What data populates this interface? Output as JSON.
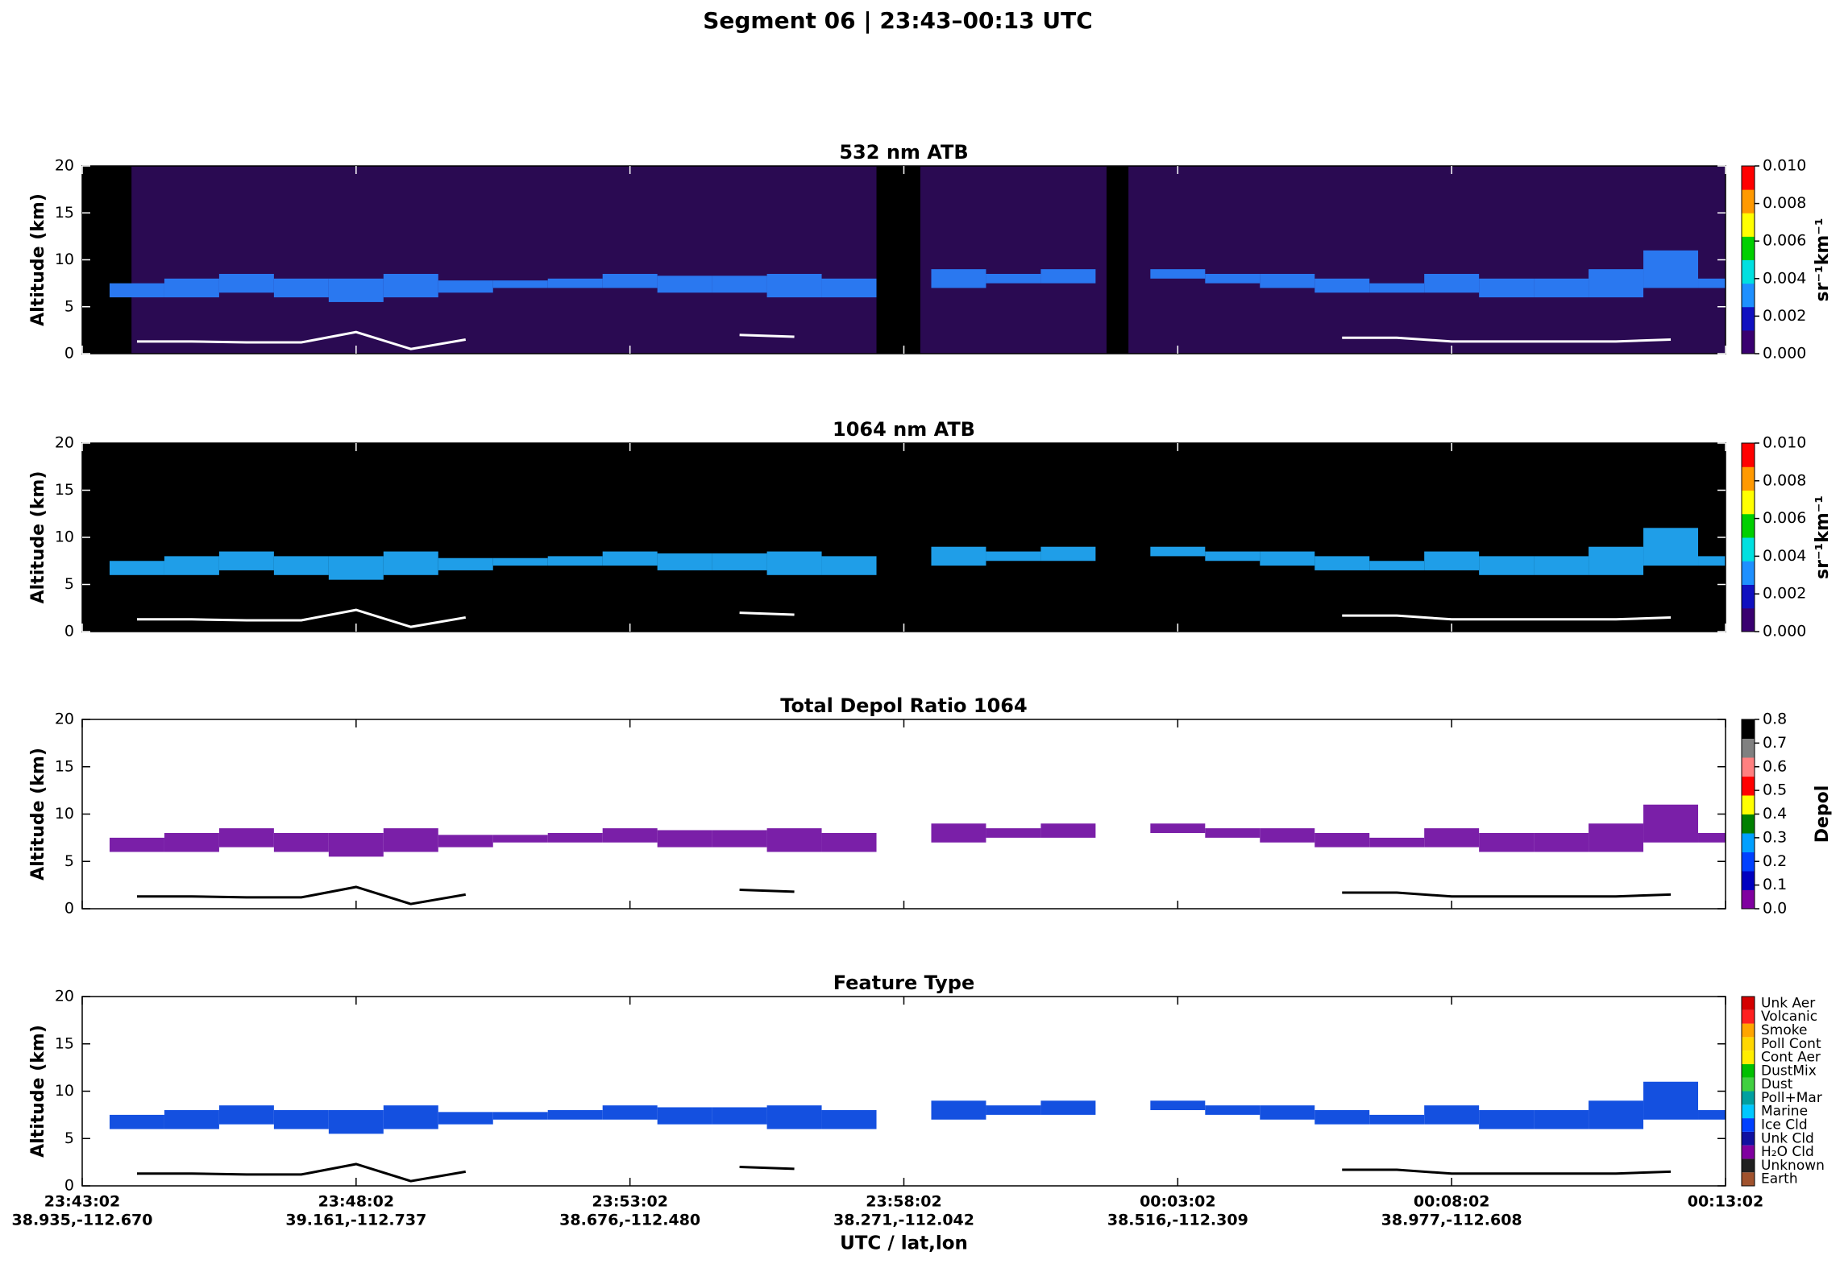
{
  "title": "Segment 06  |  23:43–00:13 UTC",
  "chart_data": [
    {
      "type": "curtain",
      "title": "532 nm ATB",
      "ylabel": "Altitude (km)",
      "ylim": [
        0,
        20
      ],
      "yticks": [
        0,
        5,
        10,
        15,
        20
      ],
      "xlim": [
        0,
        30
      ],
      "background": "#2a0a52",
      "color": "#2a78f0",
      "surface_color": "#ffffff",
      "no_data": [
        [
          0,
          0.9
        ],
        [
          14.5,
          15.3
        ],
        [
          18.7,
          19.1
        ]
      ],
      "x": [
        0,
        1,
        2,
        3,
        4,
        5,
        6,
        7,
        8,
        9,
        10,
        11,
        12,
        13,
        14,
        15,
        16,
        17,
        18,
        19,
        20,
        21,
        22,
        23,
        24,
        25,
        26,
        27,
        28,
        29,
        30
      ],
      "values": [
        null,
        7.5,
        8,
        8.5,
        8,
        8,
        8.5,
        7.8,
        7.8,
        8,
        8.5,
        8.3,
        8.3,
        8.5,
        8,
        null,
        9,
        8.5,
        9,
        null,
        9,
        8.5,
        8.5,
        8,
        7.5,
        8.5,
        8,
        8,
        9,
        11,
        8
      ],
      "base": [
        null,
        6,
        6,
        6.5,
        6,
        5.5,
        6,
        6.5,
        7,
        7,
        7,
        6.5,
        6.5,
        6,
        6,
        null,
        7,
        7.5,
        7.5,
        null,
        8,
        7.5,
        7,
        6.5,
        6.5,
        6.5,
        6,
        6,
        6,
        7,
        7
      ],
      "surface": [
        null,
        1.3,
        1.3,
        1.2,
        1.2,
        2.3,
        0.5,
        1.5,
        null,
        null,
        null,
        null,
        2,
        1.8,
        null,
        null,
        null,
        null,
        null,
        null,
        null,
        null,
        null,
        1.7,
        1.7,
        1.3,
        1.3,
        1.3,
        1.3,
        1.5,
        null
      ],
      "colorbar": {
        "label": "sr⁻¹km⁻¹",
        "lim": [
          0,
          0.01
        ],
        "colors": [
          "#3a0070",
          "#1010c0",
          "#1e90ff",
          "#00e0e0",
          "#00d000",
          "#ffff00",
          "#ff9900",
          "#ff0000"
        ],
        "ticks": [
          {
            "value": 0,
            "label": "0.000"
          },
          {
            "value": 0.002,
            "label": "0.002"
          },
          {
            "value": 0.004,
            "label": "0.004"
          },
          {
            "value": 0.006,
            "label": "0.006"
          },
          {
            "value": 0.008,
            "label": "0.008"
          },
          {
            "value": 0.01,
            "label": "0.010"
          }
        ]
      }
    },
    {
      "type": "curtain",
      "title": "1064 nm ATB",
      "ylabel": "Altitude (km)",
      "ylim": [
        0,
        20
      ],
      "yticks": [
        0,
        5,
        10,
        15,
        20
      ],
      "xlim": [
        0,
        30
      ],
      "background": "#000000",
      "color": "#1f9ee8",
      "surface_color": "#ffffff",
      "no_data": [
        [
          0,
          0.9
        ],
        [
          14.5,
          15.3
        ],
        [
          18.7,
          19.1
        ]
      ],
      "x": [
        0,
        1,
        2,
        3,
        4,
        5,
        6,
        7,
        8,
        9,
        10,
        11,
        12,
        13,
        14,
        15,
        16,
        17,
        18,
        19,
        20,
        21,
        22,
        23,
        24,
        25,
        26,
        27,
        28,
        29,
        30
      ],
      "values": [
        null,
        7.5,
        8,
        8.5,
        8,
        8,
        8.5,
        7.8,
        7.8,
        8,
        8.5,
        8.3,
        8.3,
        8.5,
        8,
        null,
        9,
        8.5,
        9,
        null,
        9,
        8.5,
        8.5,
        8,
        7.5,
        8.5,
        8,
        8,
        9,
        11,
        8
      ],
      "base": [
        null,
        6,
        6,
        6.5,
        6,
        5.5,
        6,
        6.5,
        7,
        7,
        7,
        6.5,
        6.5,
        6,
        6,
        null,
        7,
        7.5,
        7.5,
        null,
        8,
        7.5,
        7,
        6.5,
        6.5,
        6.5,
        6,
        6,
        6,
        7,
        7
      ],
      "surface": [
        null,
        1.3,
        1.3,
        1.2,
        1.2,
        2.3,
        0.5,
        1.5,
        null,
        null,
        null,
        null,
        2,
        1.8,
        null,
        null,
        null,
        null,
        null,
        null,
        null,
        null,
        null,
        1.7,
        1.7,
        1.3,
        1.3,
        1.3,
        1.3,
        1.5,
        null
      ],
      "colorbar": {
        "label": "sr⁻¹km⁻¹",
        "lim": [
          0,
          0.01
        ],
        "colors": [
          "#3a0070",
          "#1010c0",
          "#1e90ff",
          "#00e0e0",
          "#00d000",
          "#ffff00",
          "#ff9900",
          "#ff0000"
        ],
        "ticks": [
          {
            "value": 0,
            "label": "0.000"
          },
          {
            "value": 0.002,
            "label": "0.002"
          },
          {
            "value": 0.004,
            "label": "0.004"
          },
          {
            "value": 0.006,
            "label": "0.006"
          },
          {
            "value": 0.008,
            "label": "0.008"
          },
          {
            "value": 0.01,
            "label": "0.010"
          }
        ]
      }
    },
    {
      "type": "curtain",
      "title": "Total Depol Ratio 1064",
      "ylabel": "Altitude (km)",
      "ylim": [
        0,
        20
      ],
      "yticks": [
        0,
        5,
        10,
        15,
        20
      ],
      "xlim": [
        0,
        30
      ],
      "background": "#ffffff",
      "color": "#7a1fa8",
      "surface_color": "#000000",
      "x": [
        0,
        1,
        2,
        3,
        4,
        5,
        6,
        7,
        8,
        9,
        10,
        11,
        12,
        13,
        14,
        15,
        16,
        17,
        18,
        19,
        20,
        21,
        22,
        23,
        24,
        25,
        26,
        27,
        28,
        29,
        30
      ],
      "values": [
        null,
        7.5,
        8,
        8.5,
        8,
        8,
        8.5,
        7.8,
        7.8,
        8,
        8.5,
        8.3,
        8.3,
        8.5,
        8,
        null,
        9,
        8.5,
        9,
        null,
        9,
        8.5,
        8.5,
        8,
        7.5,
        8.5,
        8,
        8,
        9,
        11,
        8
      ],
      "base": [
        null,
        6,
        6,
        6.5,
        6,
        5.5,
        6,
        6.5,
        7,
        7,
        7,
        6.5,
        6.5,
        6,
        6,
        null,
        7,
        7.5,
        7.5,
        null,
        8,
        7.5,
        7,
        6.5,
        6.5,
        6.5,
        6,
        6,
        6,
        7,
        7
      ],
      "surface": [
        null,
        1.3,
        1.3,
        1.2,
        1.2,
        2.3,
        0.5,
        1.5,
        null,
        null,
        null,
        null,
        2,
        1.8,
        null,
        null,
        null,
        null,
        null,
        null,
        null,
        null,
        null,
        1.7,
        1.7,
        1.3,
        1.3,
        1.3,
        1.3,
        1.5,
        null
      ],
      "colorbar": {
        "label": "Depol",
        "lim": [
          0,
          0.8
        ],
        "colors": [
          "#8000a0",
          "#0000c0",
          "#0040ff",
          "#00a0ff",
          "#008000",
          "#ffff00",
          "#ff0000",
          "#ff8080",
          "#808080",
          "#000000"
        ],
        "ticks": [
          {
            "value": 0,
            "label": "0.0"
          },
          {
            "value": 0.1,
            "label": "0.1"
          },
          {
            "value": 0.2,
            "label": "0.2"
          },
          {
            "value": 0.3,
            "label": "0.3"
          },
          {
            "value": 0.4,
            "label": "0.4"
          },
          {
            "value": 0.5,
            "label": "0.5"
          },
          {
            "value": 0.6,
            "label": "0.6"
          },
          {
            "value": 0.7,
            "label": "0.7"
          },
          {
            "value": 0.8,
            "label": "0.8"
          }
        ]
      }
    },
    {
      "type": "curtain",
      "title": "Feature Type",
      "ylabel": "Altitude (km)",
      "xlabel": "UTC / lat,lon",
      "ylim": [
        0,
        20
      ],
      "yticks": [
        0,
        5,
        10,
        15,
        20
      ],
      "xlim": [
        0,
        30
      ],
      "background": "#ffffff",
      "color": "#1450e0",
      "surface_color": "#000000",
      "xticks": [
        {
          "value": 0,
          "label": "23:43:02",
          "sublabel": "38.935,-112.670"
        },
        {
          "value": 5,
          "label": "23:48:02",
          "sublabel": "39.161,-112.737"
        },
        {
          "value": 10,
          "label": "23:53:02",
          "sublabel": "38.676,-112.480"
        },
        {
          "value": 15,
          "label": "23:58:02",
          "sublabel": "38.271,-112.042"
        },
        {
          "value": 20,
          "label": "00:03:02",
          "sublabel": "38.516,-112.309"
        },
        {
          "value": 25,
          "label": "00:08:02",
          "sublabel": "38.977,-112.608"
        },
        {
          "value": 30,
          "label": "00:13:02"
        }
      ],
      "x": [
        0,
        1,
        2,
        3,
        4,
        5,
        6,
        7,
        8,
        9,
        10,
        11,
        12,
        13,
        14,
        15,
        16,
        17,
        18,
        19,
        20,
        21,
        22,
        23,
        24,
        25,
        26,
        27,
        28,
        29,
        30
      ],
      "values": [
        null,
        7.5,
        8,
        8.5,
        8,
        8,
        8.5,
        7.8,
        7.8,
        8,
        8.5,
        8.3,
        8.3,
        8.5,
        8,
        null,
        9,
        8.5,
        9,
        null,
        9,
        8.5,
        8.5,
        8,
        7.5,
        8.5,
        8,
        8,
        9,
        11,
        8
      ],
      "base": [
        null,
        6,
        6,
        6.5,
        6,
        5.5,
        6,
        6.5,
        7,
        7,
        7,
        6.5,
        6.5,
        6,
        6,
        null,
        7,
        7.5,
        7.5,
        null,
        8,
        7.5,
        7,
        6.5,
        6.5,
        6.5,
        6,
        6,
        6,
        7,
        7
      ],
      "surface": [
        null,
        1.3,
        1.3,
        1.2,
        1.2,
        2.3,
        0.5,
        1.5,
        null,
        null,
        null,
        null,
        2,
        1.8,
        null,
        null,
        null,
        null,
        null,
        null,
        null,
        null,
        null,
        1.7,
        1.7,
        1.3,
        1.3,
        1.3,
        1.3,
        1.5,
        null
      ],
      "colorbar": {
        "categories": [
          "Earth",
          "Unknown",
          "H₂O Cld",
          "Unk Cld",
          "Ice Cld",
          "Marine",
          "Poll+Mar",
          "Dust",
          "DustMix",
          "Cont Aer",
          "Poll Cont",
          "Smoke",
          "Volcanic",
          "Unk Aer"
        ],
        "colors": [
          "#a0522d",
          "#202020",
          "#8000a0",
          "#1010a0",
          "#0040ff",
          "#00c8ff",
          "#00a0a0",
          "#40d040",
          "#00c000",
          "#ffee00",
          "#ffd700",
          "#ffa500",
          "#ff2020",
          "#d40000"
        ]
      }
    }
  ]
}
